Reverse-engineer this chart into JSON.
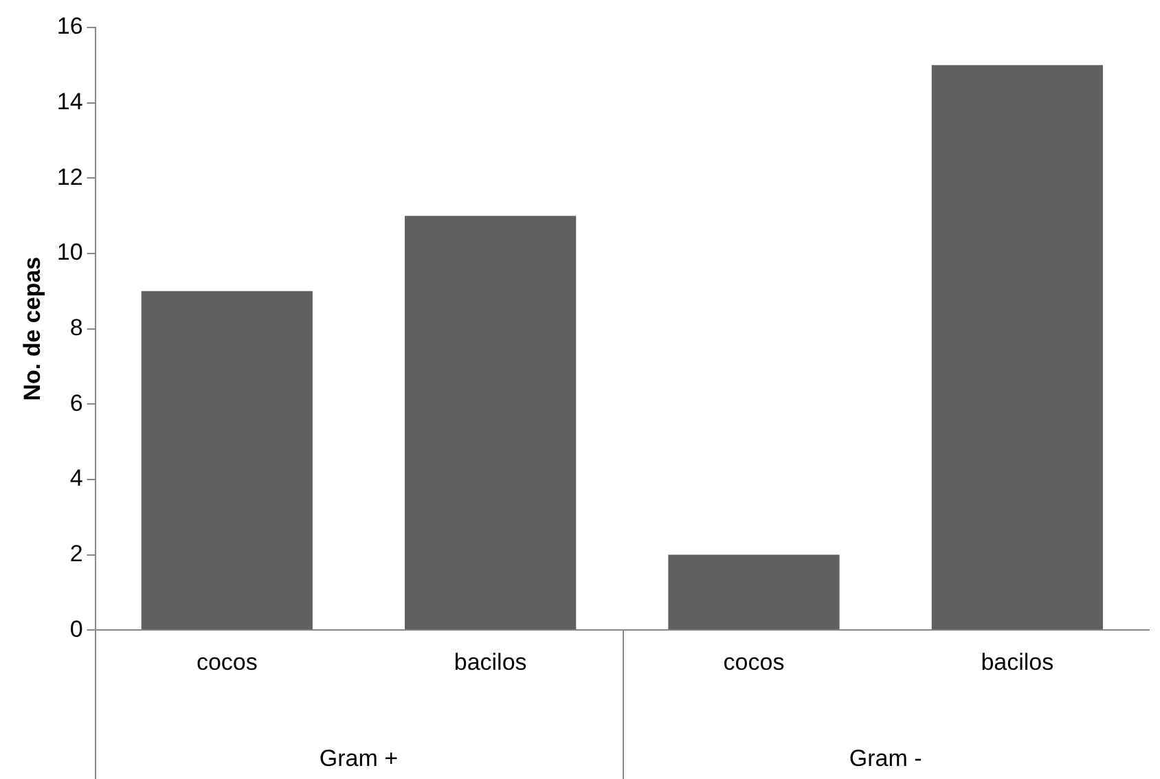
{
  "chart_data": {
    "type": "bar",
    "ylabel": "No. de cepas",
    "categories": [
      "cocos",
      "bacilos",
      "cocos",
      "bacilos"
    ],
    "values": [
      9,
      11,
      2,
      15
    ],
    "color": "#606060",
    "ylim": [
      0,
      16
    ],
    "yticks": [
      0,
      2,
      4,
      6,
      8,
      10,
      12,
      14,
      16
    ],
    "grid": false,
    "legend": false,
    "annotations": [
      "Gram +",
      "Gram -"
    ]
  }
}
